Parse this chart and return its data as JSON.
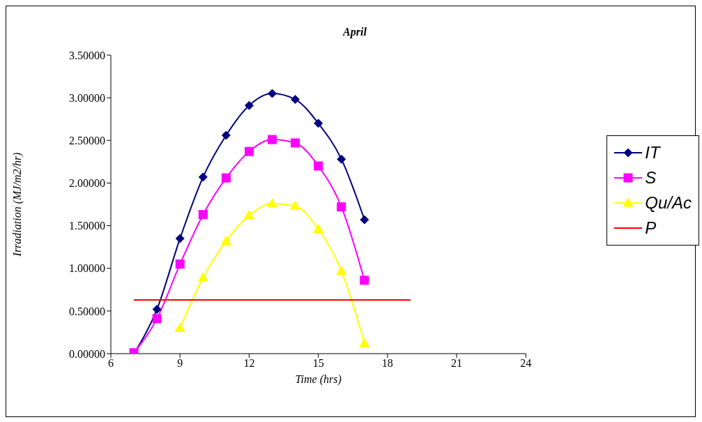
{
  "chart_data": {
    "type": "line",
    "title": "April",
    "xlabel": "Time (hrs)",
    "ylabel": "Irradiation (MJ/m2/hr)",
    "xlim": [
      6,
      24
    ],
    "xticks": [
      6,
      9,
      12,
      15,
      18,
      21,
      24
    ],
    "ylim": [
      0,
      3.5
    ],
    "yticks": [
      {
        "value": 0,
        "label": "0.00000"
      },
      {
        "value": 0.5,
        "label": "0.50000"
      },
      {
        "value": 1,
        "label": "1.00000"
      },
      {
        "value": 1.5,
        "label": "1.50000"
      },
      {
        "value": 2,
        "label": "2.00000"
      },
      {
        "value": 2.5,
        "label": "2.50000"
      },
      {
        "value": 3,
        "label": "3.00000"
      },
      {
        "value": 3.5,
        "label": "3.50000"
      }
    ],
    "grid": false,
    "legend": "right",
    "series": [
      {
        "name": "IT",
        "color": "#000080",
        "marker": "diamond",
        "x": [
          7,
          8,
          9,
          10,
          11,
          12,
          13,
          14,
          15,
          16,
          17
        ],
        "values": [
          0.0,
          0.52,
          1.35,
          2.07,
          2.56,
          2.91,
          3.05,
          2.98,
          2.7,
          2.28,
          1.57
        ]
      },
      {
        "name": "S",
        "color": "#ff00ff",
        "marker": "square",
        "x": [
          7,
          8,
          9,
          10,
          11,
          12,
          13,
          14,
          15,
          16,
          17
        ],
        "values": [
          0.01,
          0.41,
          1.05,
          1.63,
          2.06,
          2.37,
          2.51,
          2.47,
          2.2,
          1.72,
          0.86
        ]
      },
      {
        "name": "Qu/Ac",
        "color": "#ffff00",
        "marker": "triangle",
        "x": [
          9,
          10,
          11,
          12,
          13,
          14,
          15,
          16,
          17
        ],
        "values": [
          0.3,
          0.89,
          1.32,
          1.62,
          1.76,
          1.73,
          1.46,
          0.97,
          0.12
        ]
      },
      {
        "name": "P",
        "color": "#ff0000",
        "marker": "none",
        "x": [
          7,
          19
        ],
        "values": [
          0.63,
          0.63
        ]
      }
    ]
  }
}
